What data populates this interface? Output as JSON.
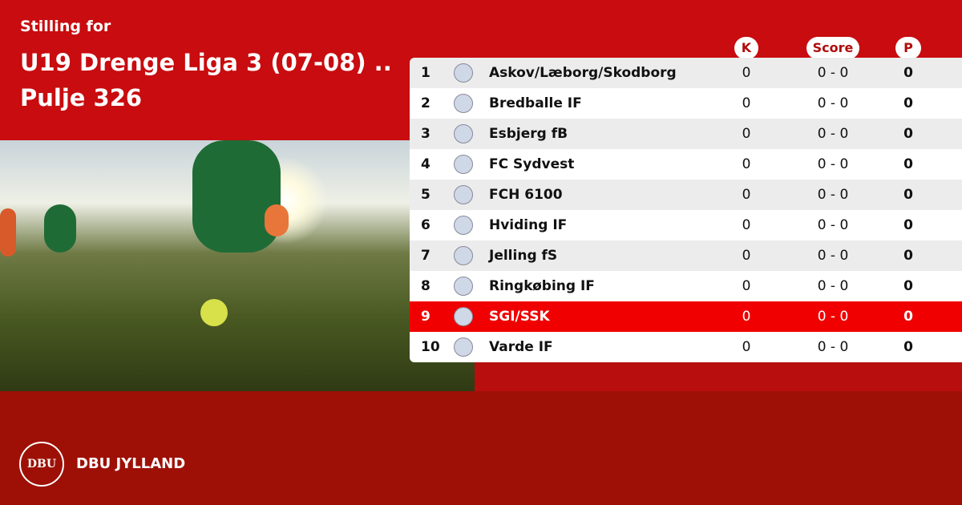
{
  "header": {
    "subtitle": "Stilling for",
    "title": "U19 Drenge Liga 3 (07-08) .. Pulje 326"
  },
  "columns": {
    "k": "K",
    "score": "Score",
    "p": "P"
  },
  "rows": [
    {
      "pos": "1",
      "team": "Askov/Læborg/Skodborg",
      "k": "0",
      "score": "0 - 0",
      "p": "0"
    },
    {
      "pos": "2",
      "team": "Bredballe IF",
      "k": "0",
      "score": "0 - 0",
      "p": "0"
    },
    {
      "pos": "3",
      "team": "Esbjerg fB",
      "k": "0",
      "score": "0 - 0",
      "p": "0"
    },
    {
      "pos": "4",
      "team": "FC Sydvest",
      "k": "0",
      "score": "0 - 0",
      "p": "0"
    },
    {
      "pos": "5",
      "team": "FCH 6100",
      "k": "0",
      "score": "0 - 0",
      "p": "0"
    },
    {
      "pos": "6",
      "team": "Hviding IF",
      "k": "0",
      "score": "0 - 0",
      "p": "0"
    },
    {
      "pos": "7",
      "team": "Jelling fS",
      "k": "0",
      "score": "0 - 0",
      "p": "0"
    },
    {
      "pos": "8",
      "team": "Ringkøbing IF",
      "k": "0",
      "score": "0 - 0",
      "p": "0"
    },
    {
      "pos": "9",
      "team": "SGI/SSK",
      "k": "0",
      "score": "0 - 0",
      "p": "0",
      "highlighted": true
    },
    {
      "pos": "10",
      "team": "Varde IF",
      "k": "0",
      "score": "0 - 0",
      "p": "0"
    }
  ],
  "footer": {
    "logo_text": "DBU",
    "brand": "DBU JYLLAND"
  },
  "colors": {
    "top": "#c80c0f",
    "bottom": "#9e1006",
    "highlight": "#f00000"
  }
}
